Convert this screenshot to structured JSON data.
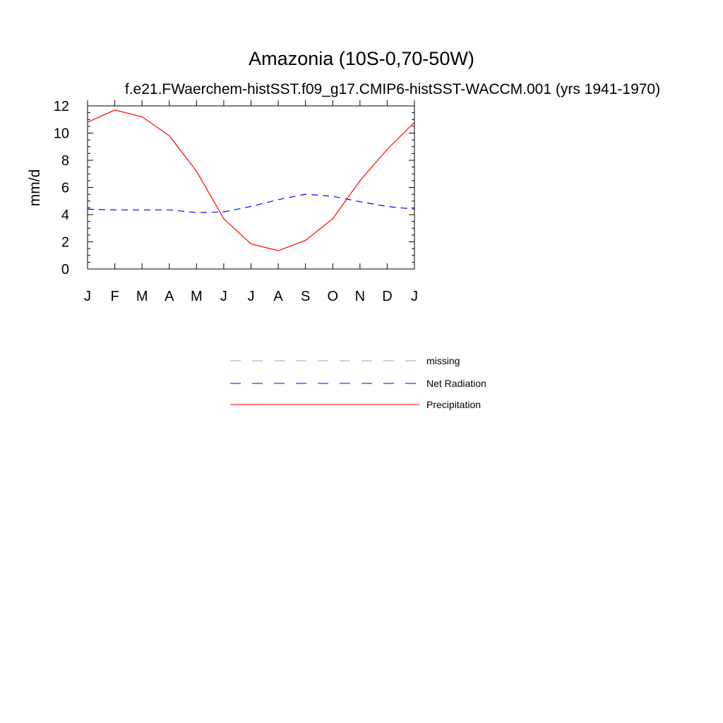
{
  "chart_data": {
    "type": "line",
    "title": "Amazonia (10S-0,70-50W)",
    "subtitle": "f.e21.FWaerchem-histSST.f09_g17.CMIP6-histSST-WACCM.001 (yrs 1941-1970)",
    "ylabel": "mm/d",
    "xlabel": "",
    "categories": [
      "J",
      "F",
      "M",
      "A",
      "M",
      "J",
      "J",
      "A",
      "S",
      "O",
      "N",
      "D",
      "J"
    ],
    "ylim": [
      0,
      12
    ],
    "yticks": [
      "0",
      "2",
      "4",
      "6",
      "8",
      "10",
      "12"
    ],
    "series": [
      {
        "name": "Net Radiation",
        "color": "#0000ff",
        "dash": "dashed",
        "values": [
          4.4,
          4.35,
          4.35,
          4.35,
          4.15,
          4.2,
          4.6,
          5.1,
          5.5,
          5.35,
          4.95,
          4.6,
          4.4
        ]
      },
      {
        "name": "Precipitation",
        "color": "#ff0000",
        "dash": "solid",
        "values": [
          10.8,
          11.7,
          11.2,
          9.8,
          7.2,
          3.7,
          1.85,
          1.35,
          2.1,
          3.7,
          6.5,
          8.8,
          10.8
        ]
      }
    ],
    "legend": {
      "placement": "below",
      "items": [
        {
          "label": "missing",
          "color": "#a0a0a0",
          "dash": "dashed"
        },
        {
          "label": "Net Radiation",
          "color": "#0000ff",
          "dash": "dashed"
        },
        {
          "label": "Precipitation",
          "color": "#ff0000",
          "dash": "solid"
        }
      ]
    }
  }
}
